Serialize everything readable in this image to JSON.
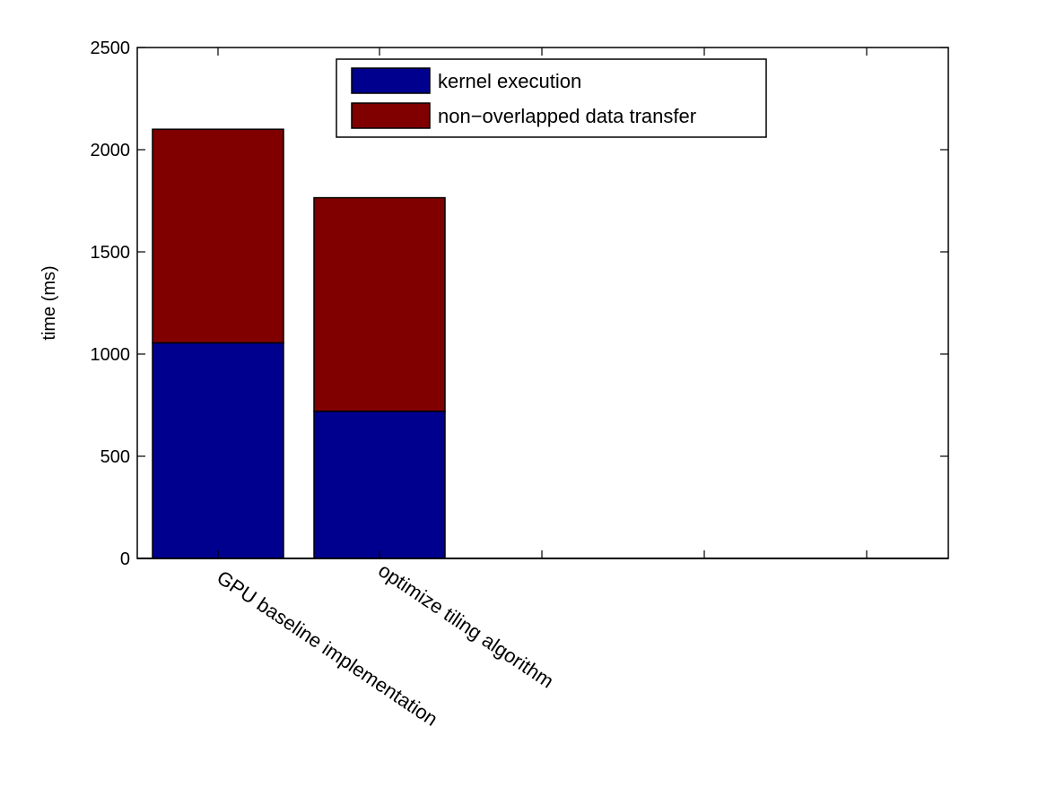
{
  "chart_data": {
    "type": "bar",
    "stacked": true,
    "categories": [
      "GPU baseline implementation",
      "optimize tiling algorithm"
    ],
    "series": [
      {
        "name": "kernel execution",
        "values": [
          1055,
          720
        ],
        "color": "#00008f"
      },
      {
        "name": "non−overlapped data transfer",
        "values": [
          1045,
          1045
        ],
        "color": "#800000"
      }
    ],
    "ylabel": "time (ms)",
    "xlabel": "",
    "ylim": [
      0,
      2500
    ],
    "yticks": [
      "0",
      "500",
      "1000",
      "1500",
      "2000",
      "2500"
    ],
    "grid": false,
    "legend_position": "top-center"
  }
}
